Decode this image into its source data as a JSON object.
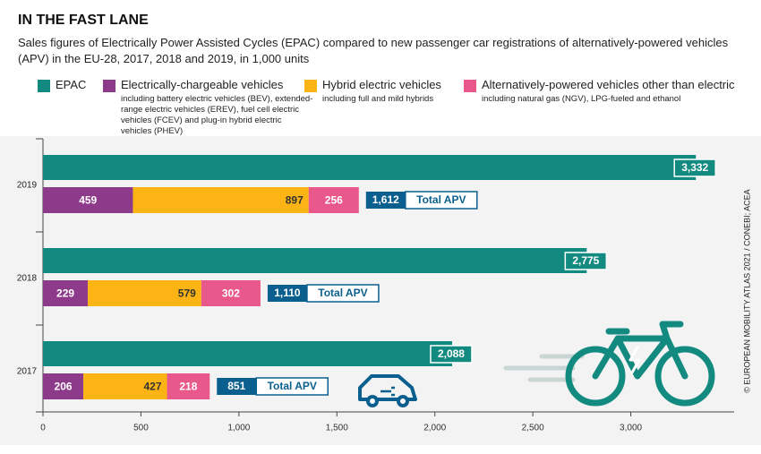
{
  "chart_data": {
    "type": "bar",
    "orientation": "horizontal",
    "title": "IN THE FAST LANE",
    "subtitle": "Sales figures of Electrically Power Assisted Cycles (EPAC) compared to new passenger car registrations of alternatively-powered vehicles (APV) in the EU-28, 2017, 2018 and 2019, in 1,000 units",
    "categories": [
      "2019",
      "2018",
      "2017"
    ],
    "series": [
      {
        "name": "EPAC",
        "color": "#138a80",
        "values": [
          3332,
          2775,
          2088
        ],
        "value_labels": [
          "3,332",
          "2,775",
          "2,088"
        ]
      },
      {
        "name": "Electrically-chargeable vehicles",
        "description": "including battery electric vehicles (BEV), extended-range electric vehicles (EREV), fuel cell electric vehicles (FCEV) and plug-in hybrid electric vehicles (PHEV)",
        "color": "#8e3a8a",
        "values": [
          459,
          229,
          206
        ]
      },
      {
        "name": "Hybrid electric vehicles",
        "description": "including full and mild hybrids",
        "color": "#fbb414",
        "values": [
          897,
          579,
          427
        ]
      },
      {
        "name": "Alternatively-powered vehicles other than electric",
        "description": "including natural gas (NGV), LPG-fueled and ethanol",
        "color": "#e8588a",
        "values": [
          256,
          302,
          218
        ]
      }
    ],
    "totals": {
      "label": "Total APV",
      "values": [
        1612,
        1110,
        851
      ],
      "value_labels": [
        "1,612",
        "1,110",
        "851"
      ],
      "color": "#0b5f8f"
    },
    "xlim": [
      0,
      3500
    ],
    "xticks": [
      0,
      500,
      {
        "value": 1000,
        "label": "1,000"
      },
      {
        "value": 1500,
        "label": "1,500"
      },
      {
        "value": 2000,
        "label": "2,000"
      },
      {
        "value": 2500,
        "label": "2,500"
      },
      {
        "value": 3000,
        "label": "3,000"
      }
    ],
    "source": "© EUROPEAN MOBILITY ATLAS 2021 / CONEBI; ACEA"
  }
}
